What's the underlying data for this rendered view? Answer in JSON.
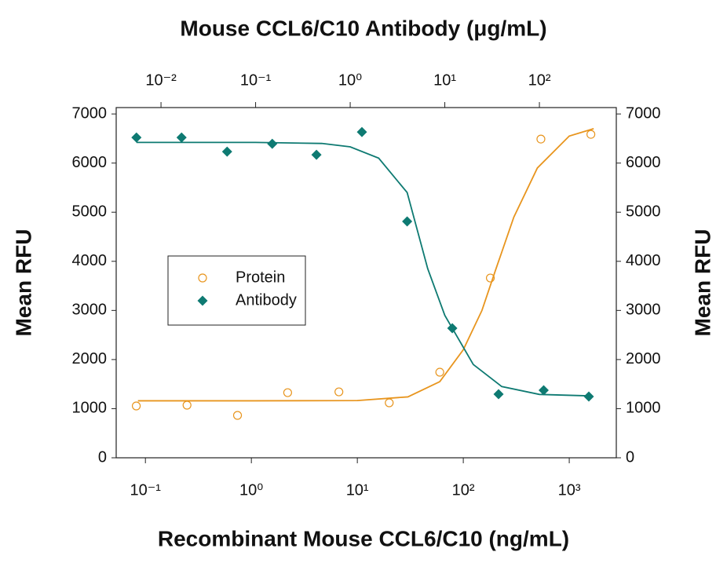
{
  "chart_data": {
    "type": "scatter",
    "x2label": "Mouse CCL6/C10 Antibody (μg/mL)",
    "xlabel": "Recombinant Mouse CCL6/C10 (ng/mL)",
    "ylabel": "Mean RFU",
    "y2label": "Mean RFU",
    "log_x": true,
    "xlim": [
      0.053,
      2780
    ],
    "xticks": [
      {
        "value": 0.1,
        "label": "10⁻¹"
      },
      {
        "value": 1,
        "label": "10⁰"
      },
      {
        "value": 10,
        "label": "10¹"
      },
      {
        "value": 100,
        "label": "10²"
      },
      {
        "value": 1000,
        "label": "10³"
      }
    ],
    "x2lim": [
      0.00336,
      650
    ],
    "x2ticks": [
      {
        "value": 0.01,
        "label": "10⁻²"
      },
      {
        "value": 0.1,
        "label": "10⁻¹"
      },
      {
        "value": 1,
        "label": "10⁰"
      },
      {
        "value": 10,
        "label": "10¹"
      },
      {
        "value": 100,
        "label": "10²"
      }
    ],
    "ylim": [
      0,
      7130
    ],
    "yticks": [
      0,
      1000,
      2000,
      3000,
      4000,
      5000,
      6000,
      7000
    ],
    "y2lim": [
      0,
      7130
    ],
    "y2ticks": [
      0,
      1000,
      2000,
      3000,
      4000,
      5000,
      6000,
      7000
    ],
    "legend": "center-left",
    "series": [
      {
        "name": "Protein",
        "color": "#e8951e",
        "marker": "circle",
        "xaxis": "x",
        "x": [
          0.082,
          0.247,
          0.74,
          2.2,
          6.7,
          20,
          60,
          180,
          540,
          1600
        ],
        "values": [
          1055,
          1071,
          863,
          1326,
          1342,
          1119,
          1742,
          3660,
          6489,
          6585
        ],
        "fit": {
          "x": [
            0.085,
            1,
            10,
            30,
            60,
            100,
            150,
            200,
            300,
            500,
            1000,
            1700
          ],
          "y": [
            1160,
            1160,
            1165,
            1240,
            1550,
            2200,
            3000,
            3800,
            4900,
            5900,
            6550,
            6700
          ]
        }
      },
      {
        "name": "Antibody",
        "color": "#0e7a72",
        "marker": "diamond",
        "xaxis": "x2",
        "x": [
          0.0055,
          0.0165,
          0.05,
          0.15,
          0.44,
          1.33,
          4,
          12,
          37,
          111,
          333
        ],
        "values": [
          6521,
          6521,
          6233,
          6393,
          6169,
          6633,
          4811,
          2637,
          1295,
          1374,
          1247
        ],
        "fit": {
          "x": [
            0.0055,
            0.1,
            0.5,
            1,
            2,
            4,
            6.6,
            10,
            20,
            40,
            100,
            346
          ],
          "y": [
            6420,
            6420,
            6400,
            6330,
            6100,
            5400,
            3850,
            2900,
            1900,
            1450,
            1290,
            1260
          ]
        }
      }
    ]
  }
}
